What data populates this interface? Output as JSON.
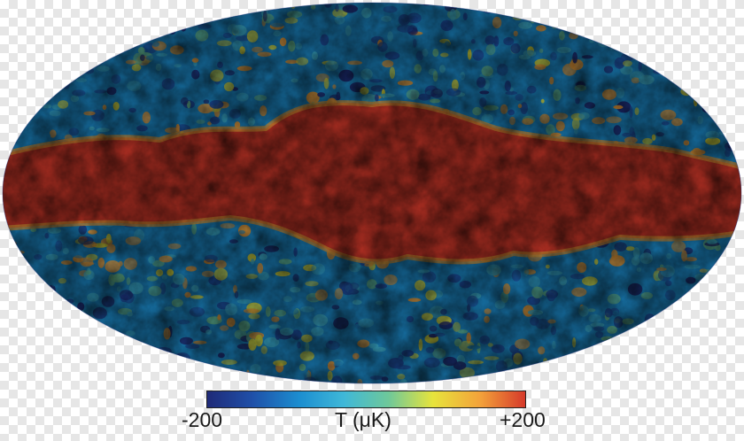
{
  "colors": {
    "colormap": [
      "#1f2a78",
      "#1f4fa8",
      "#1c8ed0",
      "#3fb8d8",
      "#6ec89a",
      "#e7e43c",
      "#f3a13a",
      "#d6392a"
    ],
    "galactic_plane": "#d6392a"
  },
  "colorbar": {
    "min_label": "-200",
    "unit_label": "T (μK)",
    "max_label": "+200",
    "min": -200,
    "max": 200
  }
}
